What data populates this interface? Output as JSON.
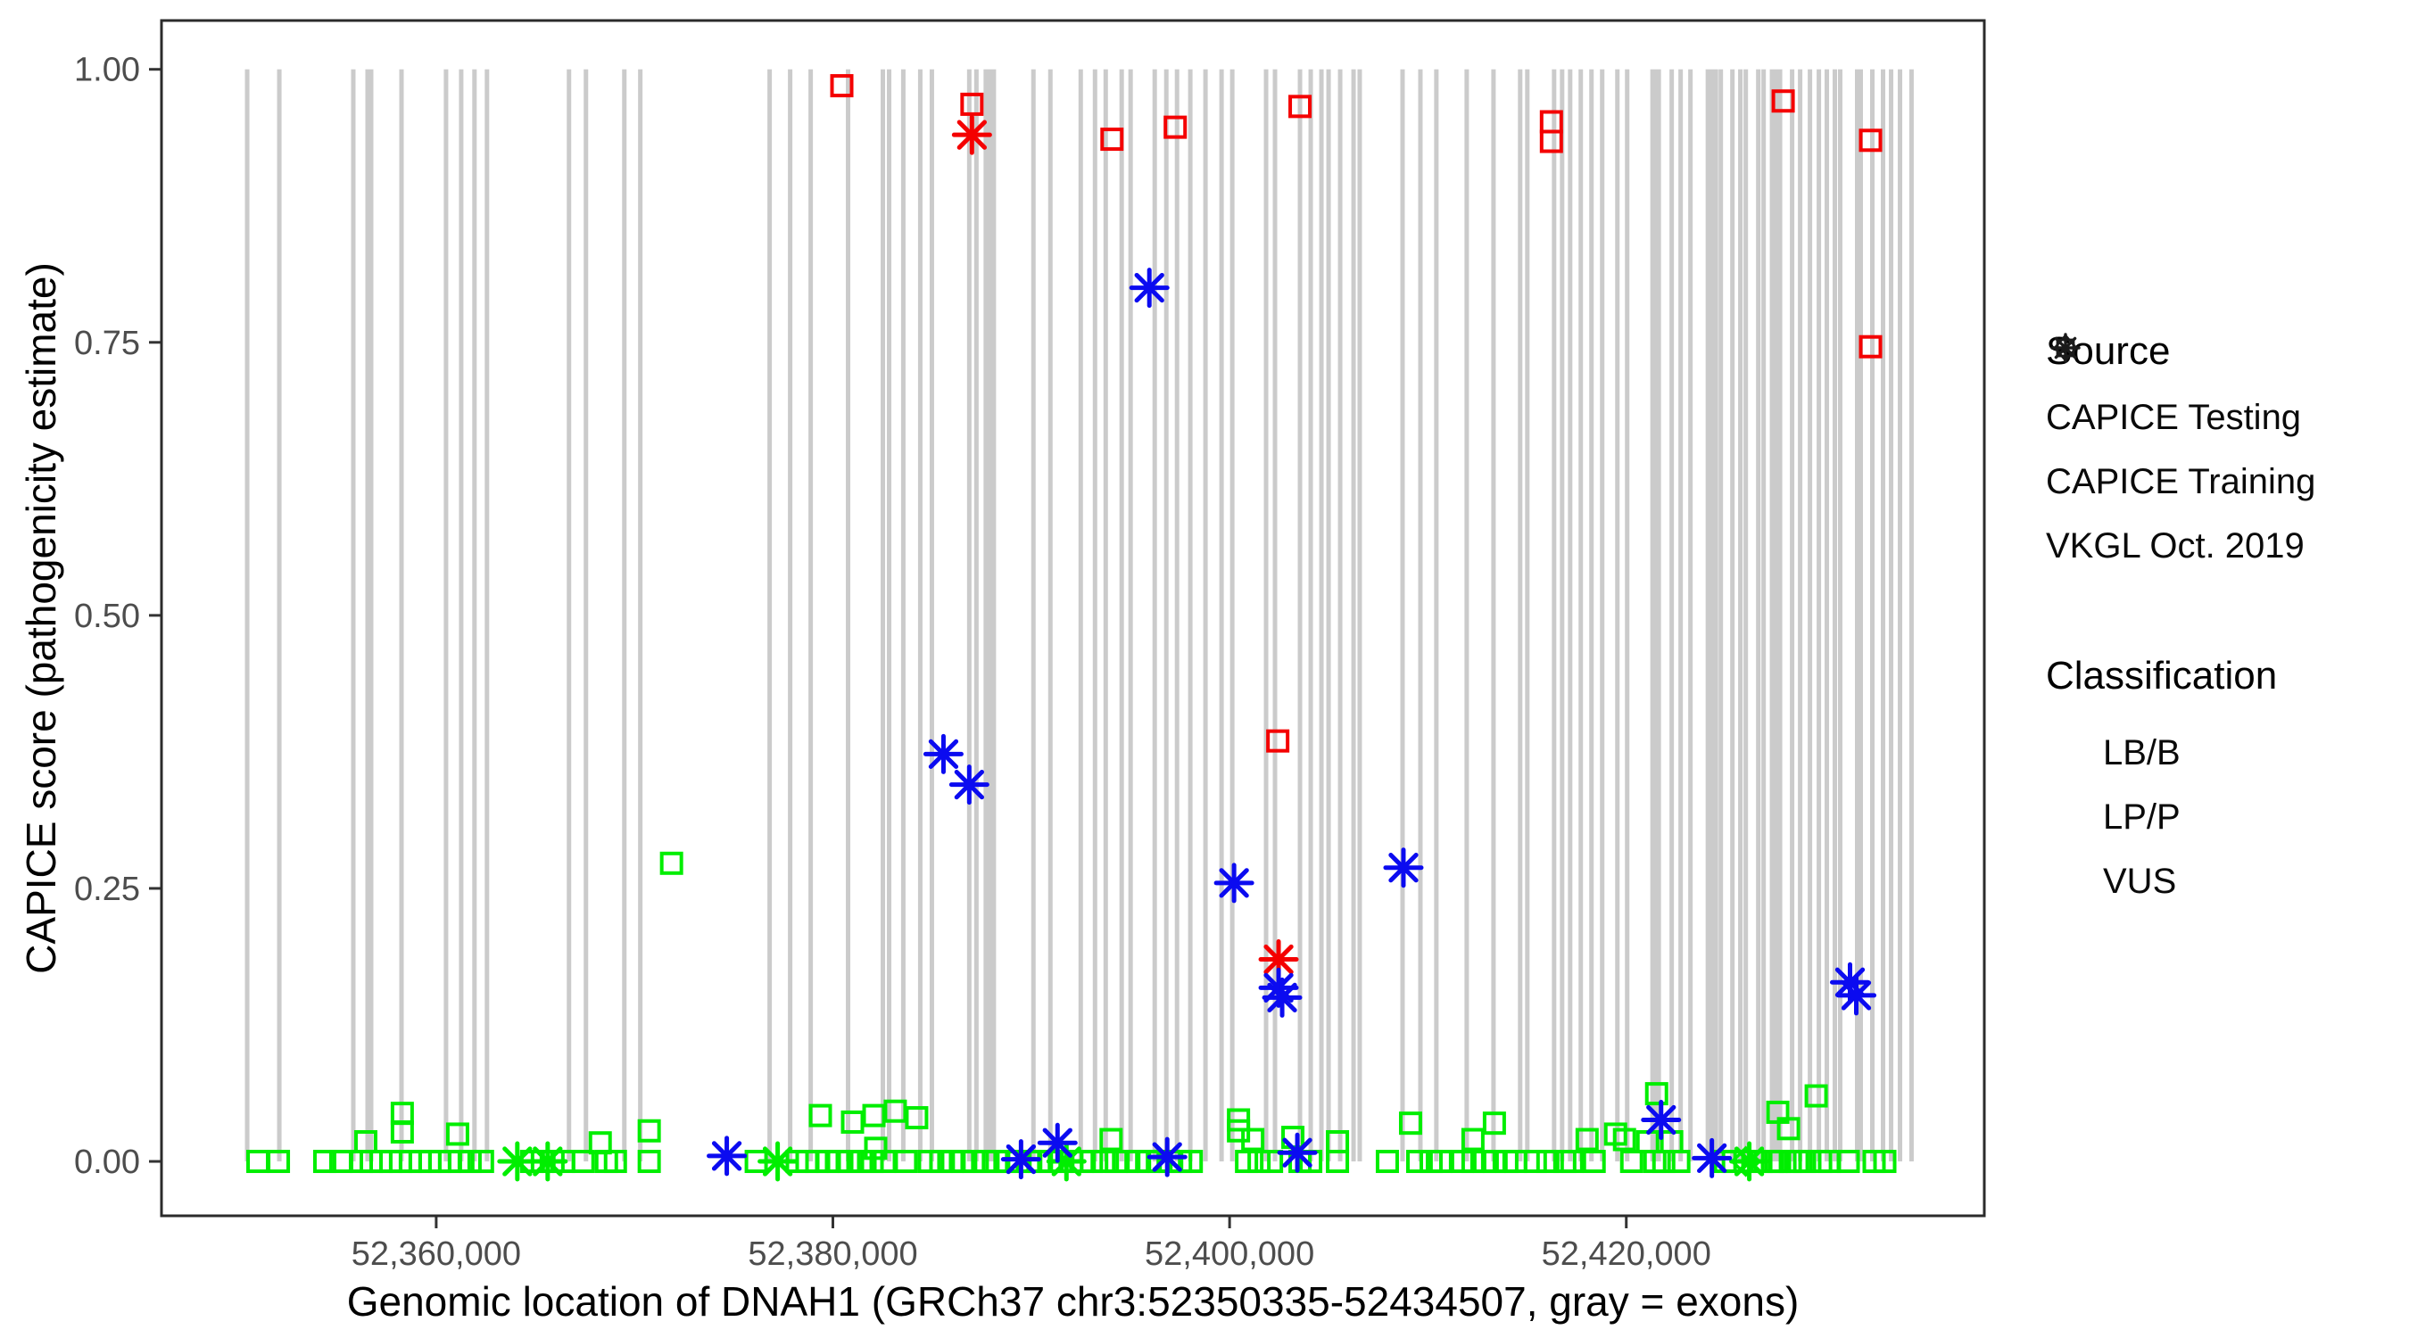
{
  "axes": {
    "x": {
      "title": "Genomic location of DNAH1 (GRCh37 chr3:52350335-52434507, gray = exons)",
      "range": [
        52346150,
        52438050
      ],
      "ticks": [
        {
          "value": 52360000,
          "label": "52,360,000"
        },
        {
          "value": 52380000,
          "label": "52,380,000"
        },
        {
          "value": 52400000,
          "label": "52,400,000"
        },
        {
          "value": 52420000,
          "label": "52,420,000"
        }
      ]
    },
    "y": {
      "title": "CAPICE score (pathogenicity estimate)",
      "range": [
        -0.0498,
        1.0447
      ],
      "ticks": [
        {
          "value": 0.0,
          "label": "0.00"
        },
        {
          "value": 0.25,
          "label": "0.25"
        },
        {
          "value": 0.5,
          "label": "0.50"
        },
        {
          "value": 0.75,
          "label": "0.75"
        },
        {
          "value": 1.0,
          "label": "1.00"
        }
      ]
    }
  },
  "legend": {
    "source": {
      "title": "Source",
      "items": [
        {
          "label": "CAPICE Testing",
          "marker": "diamond-open"
        },
        {
          "label": "CAPICE Training",
          "marker": "square-open"
        },
        {
          "label": "VKGL Oct. 2019",
          "marker": "asterisk"
        }
      ]
    },
    "classification": {
      "title": "Classification",
      "items": [
        {
          "label": "LB/B",
          "color": "#00EE00"
        },
        {
          "label": "LP/P",
          "color": "#F40000"
        },
        {
          "label": "VUS",
          "color": "#0B0BF0"
        }
      ]
    }
  },
  "colors": {
    "exon": "#CBCBCB",
    "panel_border": "#2B2B2B",
    "tick": "#333333",
    "tick_label": "#4D4D4D",
    "legend_marker": "#1A1A1A",
    "lbb": "#00EE00",
    "lpp": "#F40000",
    "vus": "#0B0BF0"
  },
  "chart_data": {
    "type": "scatter",
    "xlabel": "Genomic location of DNAH1 (GRCh37 chr3:52350335-52434507, gray = exons)",
    "ylabel": "CAPICE score (pathogenicity estimate)",
    "x_range": [
      52346150,
      52438050
    ],
    "y_range_expanded": [
      -0.0498,
      1.0447
    ],
    "grid": false,
    "legend_position": "right",
    "exon_span_y": [
      0,
      1
    ],
    "exons": [
      [
        52350470,
        225
      ],
      [
        52352090,
        225
      ],
      [
        52355820,
        225
      ],
      [
        52356630,
        405
      ],
      [
        52358250,
        225
      ],
      [
        52360495,
        225
      ],
      [
        52361260,
        225
      ],
      [
        52361930,
        225
      ],
      [
        52362560,
        225
      ],
      [
        52366695,
        225
      ],
      [
        52367550,
        225
      ],
      [
        52369485,
        225
      ],
      [
        52370290,
        225
      ],
      [
        52376810,
        225
      ],
      [
        52377845,
        225
      ],
      [
        52378880,
        225
      ],
      [
        52380765,
        225
      ],
      [
        52382520,
        225
      ],
      [
        52382835,
        225
      ],
      [
        52383550,
        225
      ],
      [
        52384405,
        225
      ],
      [
        52384990,
        225
      ],
      [
        52386875,
        225
      ],
      [
        52387235,
        225
      ],
      [
        52387910,
        630
      ],
      [
        52390110,
        225
      ],
      [
        52390965,
        225
      ],
      [
        52392495,
        225
      ],
      [
        52393215,
        225
      ],
      [
        52393755,
        225
      ],
      [
        52394560,
        225
      ],
      [
        52395010,
        225
      ],
      [
        52396225,
        225
      ],
      [
        52396810,
        225
      ],
      [
        52397350,
        225
      ],
      [
        52398020,
        225
      ],
      [
        52398785,
        225
      ],
      [
        52399595,
        225
      ],
      [
        52400135,
        225
      ],
      [
        52401840,
        225
      ],
      [
        52402290,
        225
      ],
      [
        52403550,
        225
      ],
      [
        52404090,
        225
      ],
      [
        52404630,
        225
      ],
      [
        52404990,
        225
      ],
      [
        52405575,
        225
      ],
      [
        52406250,
        225
      ],
      [
        52406560,
        225
      ],
      [
        52408720,
        225
      ],
      [
        52409620,
        225
      ],
      [
        52410425,
        225
      ],
      [
        52411955,
        225
      ],
      [
        52413305,
        225
      ],
      [
        52414650,
        225
      ],
      [
        52415010,
        225
      ],
      [
        52416360,
        225
      ],
      [
        52416765,
        225
      ],
      [
        52417170,
        225
      ],
      [
        52417705,
        225
      ],
      [
        52418245,
        225
      ],
      [
        52418785,
        225
      ],
      [
        52419550,
        225
      ],
      [
        52420045,
        225
      ],
      [
        52421480,
        540
      ],
      [
        52422290,
        225
      ],
      [
        52422740,
        225
      ],
      [
        52423235,
        225
      ],
      [
        52424315,
        630
      ],
      [
        52424765,
        225
      ],
      [
        52425350,
        225
      ],
      [
        52425750,
        225
      ],
      [
        52426025,
        225
      ],
      [
        52426655,
        225
      ],
      [
        52426925,
        225
      ],
      [
        52427550,
        630
      ],
      [
        52428360,
        225
      ],
      [
        52428765,
        225
      ],
      [
        52429260,
        225
      ],
      [
        52429710,
        225
      ],
      [
        52430110,
        225
      ],
      [
        52430515,
        225
      ],
      [
        52430785,
        225
      ],
      [
        52431730,
        405
      ],
      [
        52432405,
        225
      ],
      [
        52432945,
        225
      ],
      [
        52433350,
        225
      ],
      [
        52433800,
        225
      ],
      [
        52434380,
        225
      ]
    ],
    "series": [
      {
        "name": "LB/B CAPICE Training",
        "classification": "LB/B",
        "source": "CAPICE Training",
        "marker": "square-open",
        "color": "#00EE00",
        "points": [
          [
            52351010,
            0
          ],
          [
            52352045,
            0
          ],
          [
            52354380,
            0
          ],
          [
            52355190,
            0
          ],
          [
            52356225,
            0
          ],
          [
            52356450,
            0.018
          ],
          [
            52356720,
            0
          ],
          [
            52357215,
            0
          ],
          [
            52357710,
            0
          ],
          [
            52358200,
            0
          ],
          [
            52358290,
            0.044
          ],
          [
            52358290,
            0.027
          ],
          [
            52358695,
            0
          ],
          [
            52359190,
            0
          ],
          [
            52359685,
            0
          ],
          [
            52360180,
            0
          ],
          [
            52360675,
            0
          ],
          [
            52361080,
            0.025
          ],
          [
            52361170,
            0
          ],
          [
            52361710,
            0
          ],
          [
            52362335,
            0
          ],
          [
            52364810,
            0
          ],
          [
            52365350,
            0
          ],
          [
            52365890,
            0
          ],
          [
            52366425,
            0
          ],
          [
            52367415,
            0
          ],
          [
            52368270,
            0.017
          ],
          [
            52368585,
            0
          ],
          [
            52369035,
            0
          ],
          [
            52370740,
            0.028
          ],
          [
            52370740,
            0
          ],
          [
            52371865,
            0.273
          ],
          [
            52376135,
            0
          ],
          [
            52378200,
            0
          ],
          [
            52378695,
            0
          ],
          [
            52379190,
            0
          ],
          [
            52379370,
            0.042
          ],
          [
            52379730,
            0
          ],
          [
            52380270,
            0
          ],
          [
            52380810,
            0
          ],
          [
            52380990,
            0.036
          ],
          [
            52381440,
            0
          ],
          [
            52381980,
            0
          ],
          [
            52382070,
            0.042
          ],
          [
            52382160,
            0.012
          ],
          [
            52382610,
            0
          ],
          [
            52383145,
            0.046
          ],
          [
            52383685,
            0
          ],
          [
            52384225,
            0.04
          ],
          [
            52384855,
            0
          ],
          [
            52385440,
            0
          ],
          [
            52386025,
            0
          ],
          [
            52386560,
            0
          ],
          [
            52387100,
            0
          ],
          [
            52387685,
            0
          ],
          [
            52388270,
            0
          ],
          [
            52388810,
            0
          ],
          [
            52389350,
            0
          ],
          [
            52389890,
            0
          ],
          [
            52390425,
            0
          ],
          [
            52390965,
            0
          ],
          [
            52391505,
            0
          ],
          [
            52392045,
            0
          ],
          [
            52392585,
            0
          ],
          [
            52393035,
            0
          ],
          [
            52393665,
            0
          ],
          [
            52394025,
            0.02
          ],
          [
            52394290,
            0
          ],
          [
            52394830,
            0
          ],
          [
            52395370,
            0
          ],
          [
            52395910,
            0
          ],
          [
            52396450,
            0
          ],
          [
            52396990,
            0
          ],
          [
            52397530,
            0
          ],
          [
            52398070,
            0
          ],
          [
            52400450,
            0.038
          ],
          [
            52400450,
            0.028
          ],
          [
            52400855,
            0
          ],
          [
            52401170,
            0.02
          ],
          [
            52401485,
            0
          ],
          [
            52402115,
            0
          ],
          [
            52403190,
            0.022
          ],
          [
            52403550,
            0
          ],
          [
            52404090,
            0
          ],
          [
            52405440,
            0.018
          ],
          [
            52405440,
            0
          ],
          [
            52407955,
            0
          ],
          [
            52409125,
            0.035
          ],
          [
            52409485,
            0
          ],
          [
            52410160,
            0
          ],
          [
            52410650,
            0
          ],
          [
            52411730,
            0
          ],
          [
            52412270,
            0.02
          ],
          [
            52412270,
            0
          ],
          [
            52412855,
            0
          ],
          [
            52413350,
            0.035
          ],
          [
            52413350,
            0
          ],
          [
            52413980,
            0
          ],
          [
            52414425,
            0
          ],
          [
            52415415,
            0
          ],
          [
            52416045,
            0
          ],
          [
            52416900,
            0
          ],
          [
            52417260,
            0
          ],
          [
            52418025,
            0.02
          ],
          [
            52418380,
            0
          ],
          [
            52419460,
            0.025
          ],
          [
            52419910,
            0.02
          ],
          [
            52420270,
            0
          ],
          [
            52421080,
            0.018
          ],
          [
            52421440,
            0
          ],
          [
            52421530,
            0.062
          ],
          [
            52421890,
            0
          ],
          [
            52422290,
            0.018
          ],
          [
            52422650,
            0
          ],
          [
            52424990,
            0
          ],
          [
            52425395,
            0
          ],
          [
            52426380,
            0
          ],
          [
            52426785,
            0
          ],
          [
            52427370,
            0
          ],
          [
            52427550,
            0
          ],
          [
            52427640,
            0.045
          ],
          [
            52427730,
            0
          ],
          [
            52428180,
            0.03
          ],
          [
            52428270,
            0
          ],
          [
            52428630,
            0
          ],
          [
            52428990,
            0
          ],
          [
            52429575,
            0.06
          ],
          [
            52429800,
            0
          ],
          [
            52430245,
            0
          ],
          [
            52431190,
            0
          ],
          [
            52432495,
            0
          ],
          [
            52433035,
            0
          ]
        ]
      },
      {
        "name": "LB/B CAPICE Testing",
        "classification": "LB/B",
        "source": "CAPICE Testing",
        "marker": "diamond-open",
        "color": "#00EE00",
        "points": [
          [
            52426025,
            0
          ]
        ]
      },
      {
        "name": "LB/B VKGL Oct. 2019",
        "classification": "LB/B",
        "source": "VKGL Oct. 2019",
        "marker": "asterisk",
        "color": "#00EE00",
        "points": [
          [
            52364090,
            0
          ],
          [
            52365620,
            0
          ],
          [
            52377215,
            0
          ],
          [
            52391775,
            0
          ],
          [
            52426200,
            0
          ]
        ]
      },
      {
        "name": "LP/P CAPICE Training",
        "classification": "LP/P",
        "source": "CAPICE Training",
        "marker": "square-open",
        "color": "#F40000",
        "points": [
          [
            52380450,
            0.985
          ],
          [
            52387010,
            0.968
          ],
          [
            52394070,
            0.936
          ],
          [
            52397260,
            0.947
          ],
          [
            52402430,
            0.385
          ],
          [
            52403550,
            0.966
          ],
          [
            52416225,
            0.952
          ],
          [
            52416225,
            0.934
          ],
          [
            52427910,
            0.971
          ],
          [
            52432315,
            0.935
          ],
          [
            52432315,
            0.746
          ]
        ]
      },
      {
        "name": "LP/P VKGL Oct. 2019",
        "classification": "LP/P",
        "source": "VKGL Oct. 2019",
        "marker": "asterisk",
        "color": "#F40000",
        "points": [
          [
            52387010,
            0.94
          ],
          [
            52402470,
            0.185
          ]
        ]
      },
      {
        "name": "VUS VKGL Oct. 2019",
        "classification": "VUS",
        "source": "VKGL Oct. 2019",
        "marker": "asterisk",
        "color": "#0B0BF0",
        "points": [
          [
            52374650,
            0.005
          ],
          [
            52385575,
            0.373
          ],
          [
            52386875,
            0.345
          ],
          [
            52389485,
            0.002
          ],
          [
            52391325,
            0.017
          ],
          [
            52395955,
            0.8
          ],
          [
            52396855,
            0.004
          ],
          [
            52400225,
            0.255
          ],
          [
            52402470,
            0.159
          ],
          [
            52402650,
            0.15
          ],
          [
            52403415,
            0.008
          ],
          [
            52408765,
            0.269
          ],
          [
            52421755,
            0.038
          ],
          [
            52424315,
            0.003
          ],
          [
            52431280,
            0.164
          ],
          [
            52431595,
            0.152
          ]
        ]
      }
    ]
  }
}
